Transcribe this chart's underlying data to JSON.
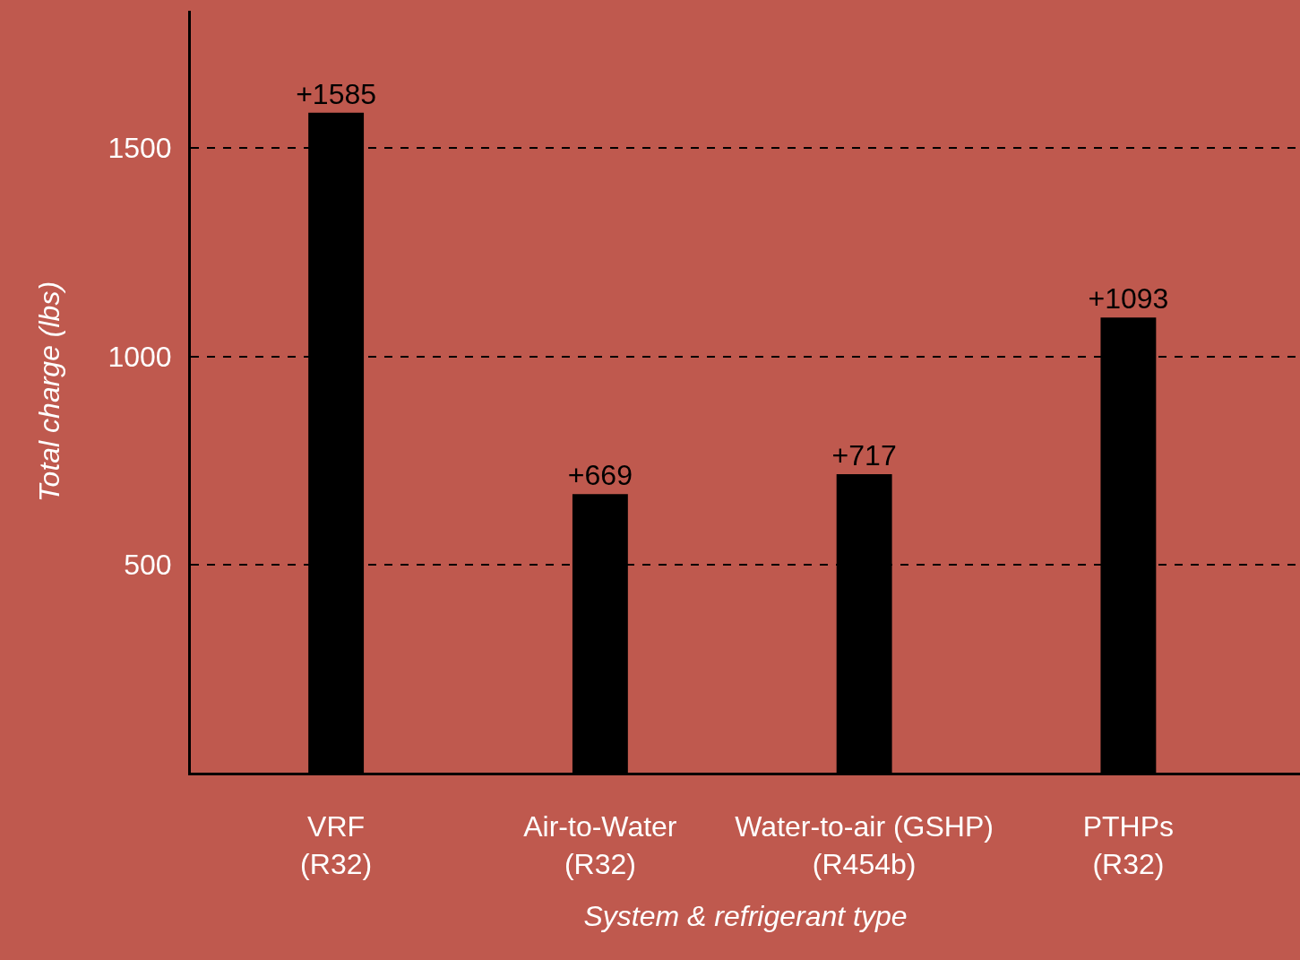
{
  "chart_data": {
    "type": "bar",
    "xlabel": "System & refrigerant type",
    "ylabel": "Total charge (lbs)",
    "categories": [
      "VRF\n(R32)",
      "Air-to-Water\n(R32)",
      "Water-to-air (GSHP)\n(R454b)",
      "PTHPs\n(R32)"
    ],
    "values": [
      1585,
      669,
      717,
      1093
    ],
    "value_labels": [
      "+1585",
      "+669",
      "+717",
      "+1093"
    ],
    "color": "#000000",
    "ylim": [
      0,
      1830
    ],
    "yticks": [
      500,
      1000,
      1500
    ],
    "grid": "y"
  }
}
